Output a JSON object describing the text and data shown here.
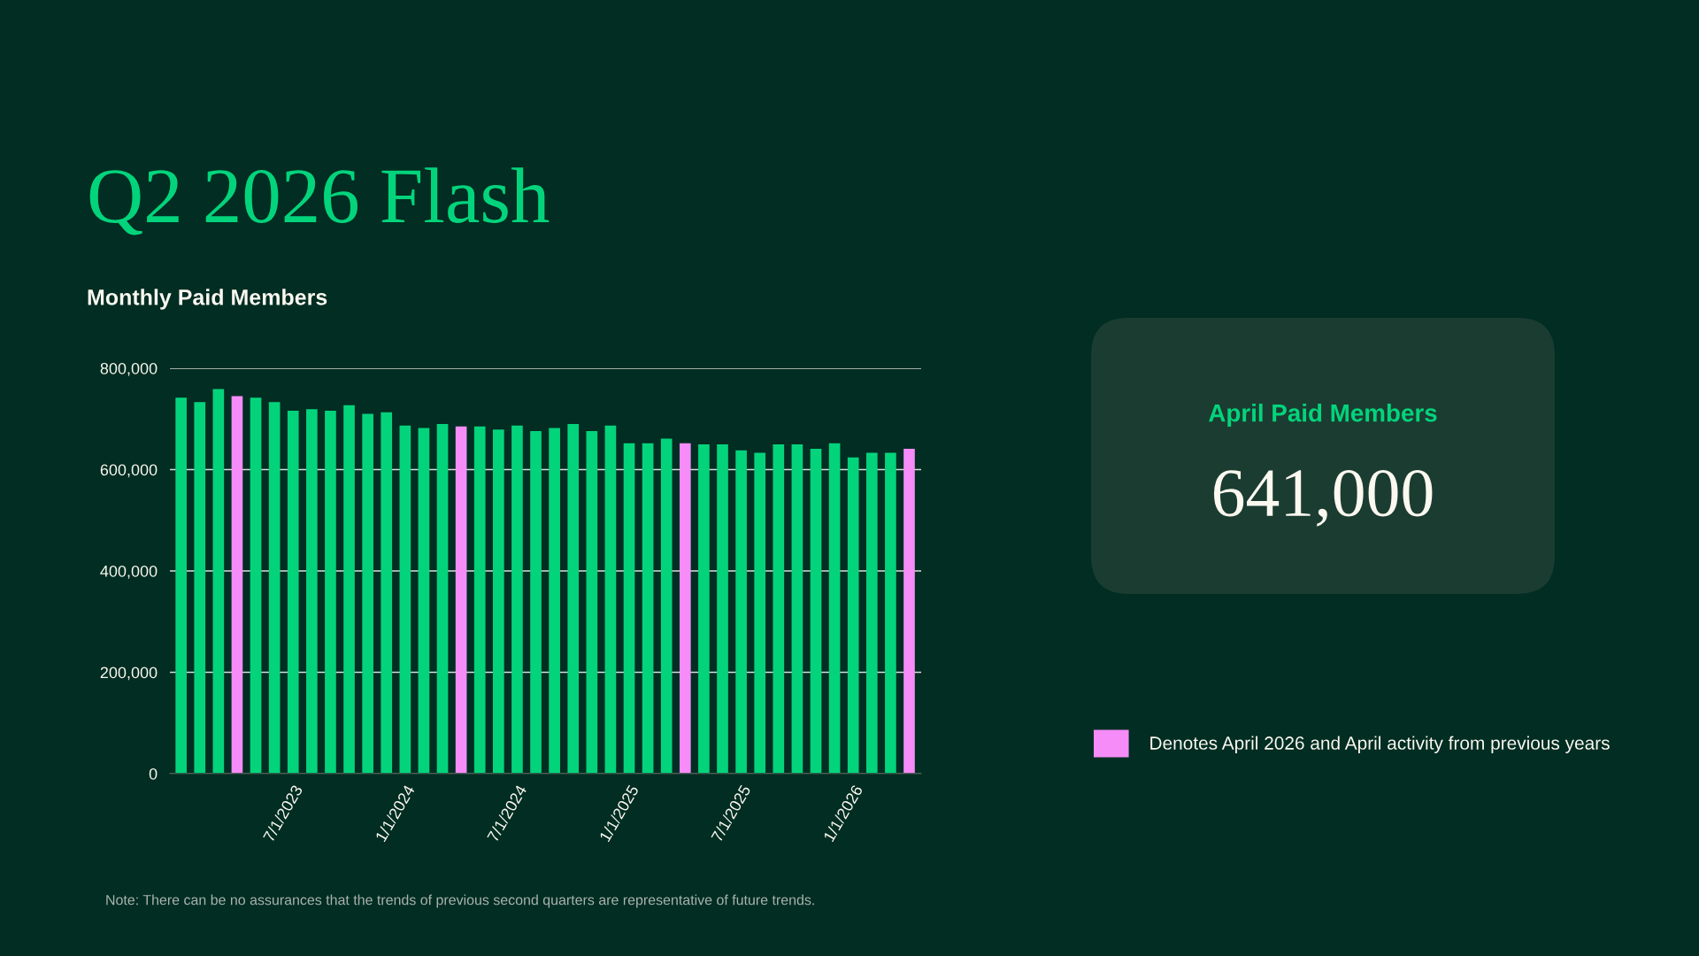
{
  "chart_data": [
    {
      "type": "bar",
      "title": "Q2 2026 Flash",
      "subtitle": "Monthly Paid Members",
      "categories": [
        null,
        null,
        null,
        null,
        null,
        null,
        "7/1/2023",
        null,
        null,
        null,
        null,
        null,
        "1/1/2024",
        null,
        null,
        null,
        null,
        null,
        "7/1/2024",
        null,
        null,
        null,
        null,
        null,
        "1/1/2025",
        null,
        null,
        null,
        null,
        null,
        "7/1/2025",
        null,
        null,
        null,
        null,
        null,
        "1/1/2026",
        null,
        null,
        null
      ],
      "series": [
        {
          "color": "#03d47c",
          "values": [
            742000,
            733000,
            759000,
            null,
            742000,
            733000,
            716000,
            719000,
            716000,
            727000,
            710000,
            713000,
            687000,
            682000,
            690000,
            null,
            685000,
            679000,
            687000,
            676000,
            682000,
            690000,
            676000,
            687000,
            652000,
            652000,
            661000,
            null,
            650000,
            650000,
            638000,
            633000,
            650000,
            650000,
            641000,
            652000,
            624000,
            633000,
            633000,
            null
          ]
        },
        {
          "name": "Denotes April 2026 and April activity from previous years",
          "color": "#f58cf7",
          "values": [
            null,
            null,
            null,
            745000,
            null,
            null,
            null,
            null,
            null,
            null,
            null,
            null,
            null,
            null,
            null,
            685000,
            null,
            null,
            null,
            null,
            null,
            null,
            null,
            null,
            null,
            null,
            null,
            652000,
            null,
            null,
            null,
            null,
            null,
            null,
            null,
            null,
            null,
            null,
            null,
            641000
          ]
        }
      ],
      "stacked": true,
      "ylim": [
        0,
        800000
      ],
      "yticks": [
        0,
        {
          "value": 200000,
          "label": "200,000"
        },
        {
          "value": 400000,
          "label": "400,000"
        },
        {
          "value": 600000,
          "label": "600,000"
        },
        {
          "value": 800000,
          "label": "800,000"
        }
      ],
      "grid": "y",
      "legend": "right",
      "annotations": [
        "Note: There can be no assurances that the trends of previous second quarters are representative of future trends."
      ]
    },
    {
      "type": "other",
      "title": "April Paid Members",
      "annotations": [
        "641,000"
      ]
    }
  ]
}
